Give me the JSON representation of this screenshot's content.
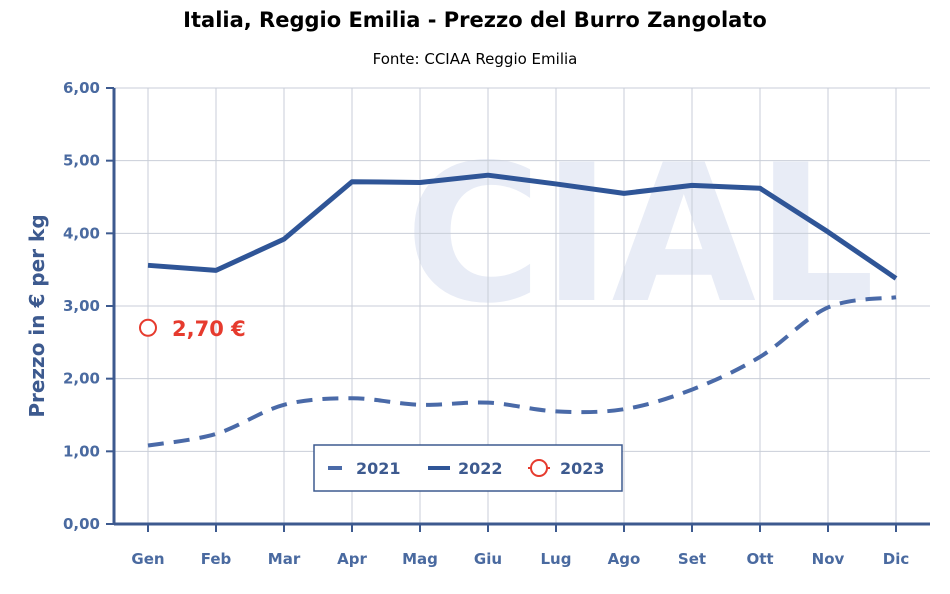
{
  "chart_data": {
    "type": "line",
    "title": "Italia, Reggio Emilia - Prezzo del Burro Zangolato",
    "subtitle": "Fonte: CCIAA Reggio Emilia",
    "xlabel": "",
    "ylabel": "Prezzo in € per kg",
    "categories": [
      "Gen",
      "Feb",
      "Mar",
      "Apr",
      "Mag",
      "Giu",
      "Lug",
      "Ago",
      "Set",
      "Ott",
      "Nov",
      "Dic"
    ],
    "ylim": [
      0,
      6
    ],
    "yticks": [
      "0,00",
      "1,00",
      "2,00",
      "3,00",
      "4,00",
      "5,00",
      "6,00"
    ],
    "grid": true,
    "legend_position": "bottom-center",
    "watermark": "CIAL",
    "series": [
      {
        "name": "2021",
        "style": "dashed",
        "color": "#4a6aa8",
        "values": [
          1.08,
          1.24,
          1.64,
          1.73,
          1.64,
          1.67,
          1.55,
          1.58,
          1.85,
          2.3,
          2.98,
          3.12
        ]
      },
      {
        "name": "2022",
        "style": "solid",
        "color": "#2f5597",
        "values": [
          3.56,
          3.49,
          3.92,
          4.71,
          4.7,
          4.8,
          4.68,
          4.55,
          4.66,
          4.62,
          4.02,
          3.38
        ]
      },
      {
        "name": "2023",
        "style": "marker",
        "color": "#e63b2e",
        "values": [
          2.7,
          null,
          null,
          null,
          null,
          null,
          null,
          null,
          null,
          null,
          null,
          null
        ]
      }
    ],
    "annotations": [
      {
        "category": "Gen",
        "series": "2023",
        "text": "2,70 €"
      }
    ]
  }
}
